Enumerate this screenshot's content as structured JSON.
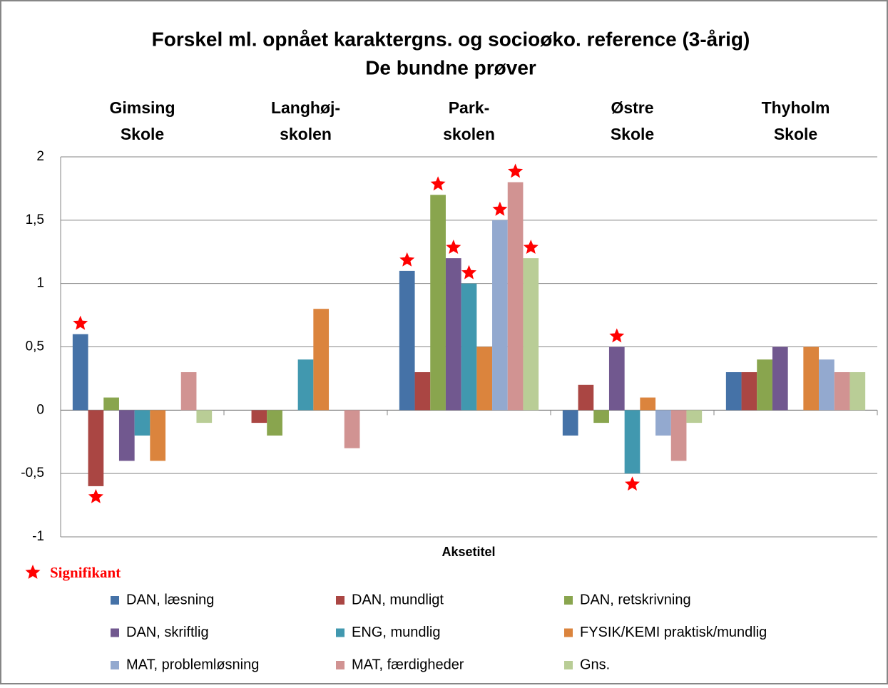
{
  "chart_data": {
    "type": "bar",
    "title": "Forskel ml. opnået karaktergns. og socioøko. reference (3-årig)",
    "subtitle": "De bundne prøver",
    "x_label": "Aksetitel",
    "significance_label": "Signifikant",
    "categories": [
      [
        "Gimsing",
        "Skole"
      ],
      [
        "Langhøj-",
        "skolen"
      ],
      [
        "Park-",
        "skolen"
      ],
      [
        "Østre",
        "Skole"
      ],
      [
        "Thyholm",
        "Skole"
      ]
    ],
    "ylim": [
      -1,
      2
    ],
    "yticks": [
      -1,
      {
        "value": -0.5,
        "label": "-0,5"
      },
      0,
      {
        "value": 0.5,
        "label": "0,5"
      },
      1,
      {
        "value": 1.5,
        "label": "1,5"
      },
      2
    ],
    "grid": true,
    "series": [
      {
        "name": "DAN, læsning",
        "color": "#4572a7",
        "values": [
          0.6,
          null,
          1.1,
          -0.2,
          0.3
        ],
        "significant": [
          true,
          false,
          true,
          false,
          false
        ]
      },
      {
        "name": "DAN, mundligt",
        "color": "#aa4643",
        "values": [
          -0.6,
          -0.1,
          0.3,
          0.2,
          0.3
        ],
        "significant": [
          true,
          false,
          false,
          false,
          false
        ]
      },
      {
        "name": "DAN, retskrivning",
        "color": "#89a54e",
        "values": [
          0.1,
          -0.2,
          1.7,
          -0.1,
          0.4
        ],
        "significant": [
          false,
          false,
          true,
          false,
          false
        ]
      },
      {
        "name": "DAN, skriftlig",
        "color": "#71588f",
        "values": [
          -0.4,
          null,
          1.2,
          0.5,
          0.5
        ],
        "significant": [
          false,
          false,
          true,
          true,
          false
        ]
      },
      {
        "name": "ENG, mundlig",
        "color": "#4198af",
        "values": [
          -0.2,
          0.4,
          1.0,
          -0.5,
          null
        ],
        "significant": [
          false,
          false,
          true,
          true,
          false
        ]
      },
      {
        "name": "FYSIK/KEMI praktisk/mundlig",
        "color": "#db843d",
        "values": [
          -0.4,
          0.8,
          0.5,
          0.1,
          0.5
        ],
        "significant": [
          false,
          false,
          false,
          false,
          false
        ]
      },
      {
        "name": "MAT, problemløsning",
        "color": "#93a9cf",
        "values": [
          null,
          null,
          1.5,
          -0.2,
          0.4
        ],
        "significant": [
          false,
          false,
          true,
          false,
          false
        ]
      },
      {
        "name": "MAT, færdigheder",
        "color": "#d19392",
        "values": [
          0.3,
          -0.3,
          1.8,
          -0.4,
          0.3
        ],
        "significant": [
          false,
          false,
          true,
          false,
          false
        ]
      },
      {
        "name": "Gns.",
        "color": "#b9cd96",
        "values": [
          -0.1,
          null,
          1.2,
          -0.1,
          0.3
        ],
        "significant": [
          false,
          false,
          true,
          false,
          false
        ]
      }
    ]
  }
}
